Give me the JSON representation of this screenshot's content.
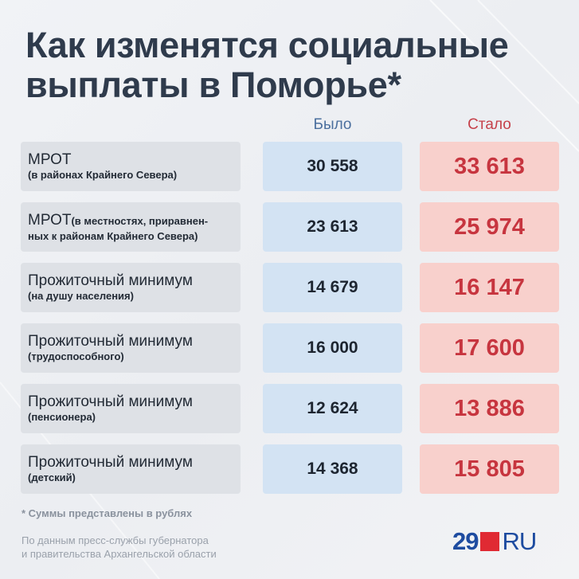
{
  "title": {
    "line1": "Как изменятся социальные",
    "line2": "выплаты в Поморье*"
  },
  "columns": {
    "before": "Было",
    "after": "Стало"
  },
  "rows": [
    {
      "main": "МРОТ",
      "sub": "(в районах Крайнего Севера)",
      "before": "30 558",
      "after": "33 613"
    },
    {
      "main": "МРОТ",
      "inline": "(в местностях, приравнен-",
      "sub": "ных к районам Крайнего Севера)",
      "before": "23 613",
      "after": "25 974"
    },
    {
      "main": "Прожиточный минимум",
      "sub": "(на душу населения)",
      "before": "14 679",
      "after": "16 147"
    },
    {
      "main": "Прожиточный минимум",
      "sub": "(трудоспособного)",
      "before": "16 000",
      "after": "17 600"
    },
    {
      "main": "Прожиточный минимум",
      "sub": "(пенсионера)",
      "before": "12 624",
      "after": "13 886"
    },
    {
      "main": "Прожиточный минимум",
      "sub": "(детский)",
      "before": "14 368",
      "after": "15 805"
    }
  ],
  "footnote": "* Суммы представлены в рублях",
  "source": {
    "line1": "По данным пресс-службы губернатора",
    "line2": "и правительства Архангельской области"
  },
  "logo": {
    "number": "29",
    "suffix": "RU",
    "colors": {
      "blue": "#1e4ca0",
      "red": "#e02a33"
    }
  },
  "colors": {
    "title": "#2f3b4c",
    "before_bg": "#d3e3f3",
    "after_bg": "#f8d0cc",
    "after_text": "#c7353f",
    "label_bg": "#dee1e6"
  }
}
